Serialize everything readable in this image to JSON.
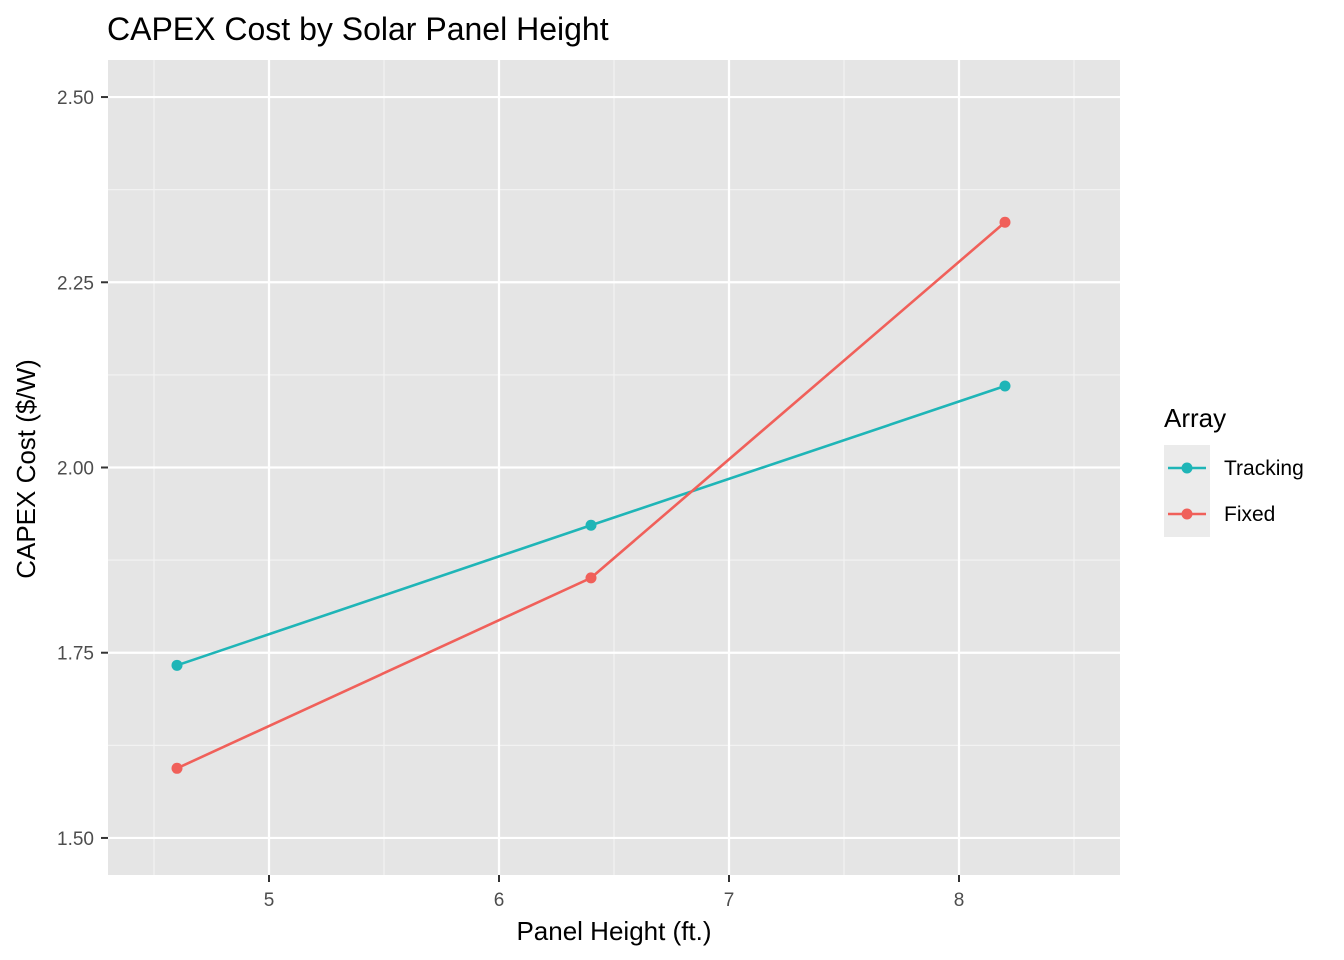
{
  "chart_data": {
    "type": "line",
    "title": "CAPEX Cost by Solar Panel Height",
    "xlabel": "Panel Height (ft.)",
    "ylabel": "CAPEX Cost ($/W)",
    "xlim": [
      4.3,
      8.7
    ],
    "ylim": [
      1.45,
      2.55
    ],
    "x_ticks": [
      5,
      6,
      7,
      8
    ],
    "x_tick_labels": [
      "5",
      "6",
      "7",
      "8"
    ],
    "x_minor_ticks": [
      4.5,
      5.5,
      6.5,
      7.5,
      8.5
    ],
    "y_ticks": [
      1.5,
      1.75,
      2.0,
      2.25,
      2.5
    ],
    "y_tick_labels": [
      "1.50",
      "1.75",
      "2.00",
      "2.25",
      "2.50"
    ],
    "y_minor_ticks": [
      1.625,
      1.875,
      2.125,
      2.375
    ],
    "grid": true,
    "background": "#e5e5e5",
    "legend": {
      "title": "Array",
      "position": "right"
    },
    "series": [
      {
        "name": "Tracking",
        "color": "#1fb5b7",
        "x": [
          4.6,
          6.4,
          8.2
        ],
        "y": [
          1.733,
          1.922,
          2.11
        ]
      },
      {
        "name": "Fixed",
        "color": "#f0605a",
        "x": [
          4.6,
          6.4,
          8.2
        ],
        "y": [
          1.594,
          1.851,
          2.331
        ]
      }
    ]
  }
}
